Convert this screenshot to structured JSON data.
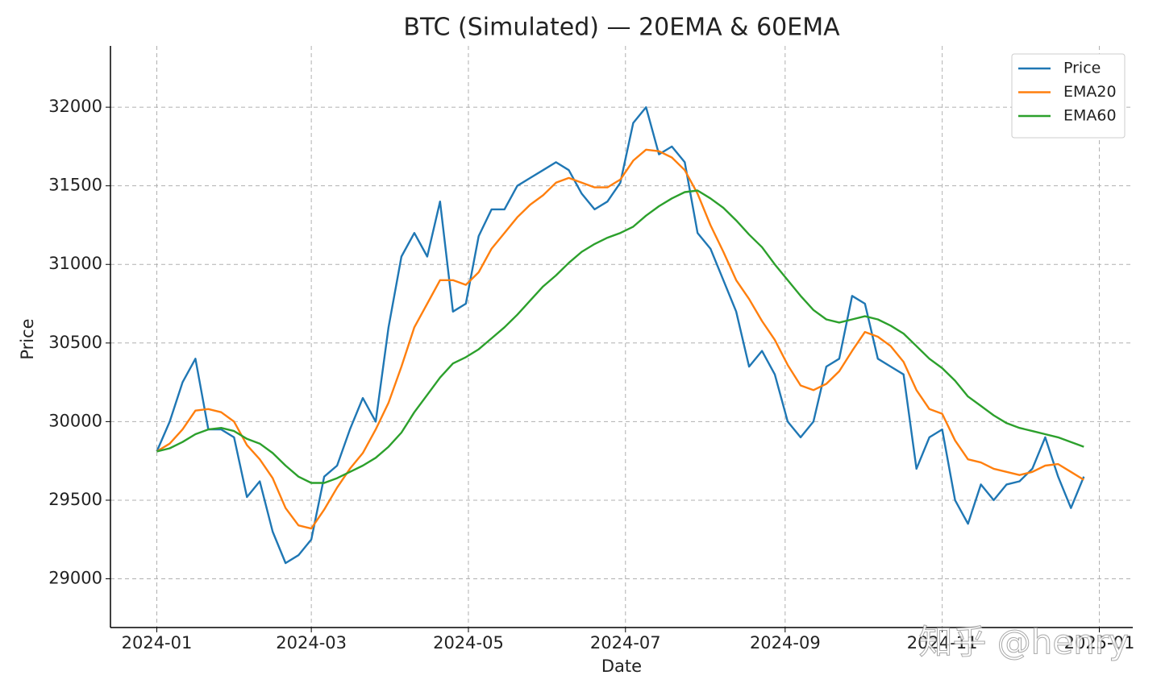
{
  "chart_data": {
    "type": "line",
    "title": "BTC (Simulated) — 20EMA & 60EMA",
    "x_label": "Date",
    "y_label": "Price",
    "xlim": [
      -18,
      379
    ],
    "ylim": [
      28690,
      32390
    ],
    "xticks": [
      {
        "value": 0,
        "label": "2024-01"
      },
      {
        "value": 60,
        "label": "2024-03"
      },
      {
        "value": 121,
        "label": "2024-05"
      },
      {
        "value": 182,
        "label": "2024-07"
      },
      {
        "value": 244,
        "label": "2024-09"
      },
      {
        "value": 305,
        "label": "2024-11"
      },
      {
        "value": 366,
        "label": "2025-01"
      }
    ],
    "yticks": [
      29000,
      29500,
      30000,
      30500,
      31000,
      31500,
      32000
    ],
    "grid": true,
    "legend": "upper right",
    "watermark": "知乎 @henry",
    "x": [
      0,
      5,
      10,
      15,
      20,
      25,
      30,
      35,
      40,
      45,
      50,
      55,
      60,
      65,
      70,
      75,
      80,
      85,
      90,
      95,
      100,
      105,
      110,
      115,
      120,
      125,
      130,
      135,
      140,
      145,
      150,
      155,
      160,
      165,
      170,
      175,
      180,
      185,
      190,
      195,
      200,
      205,
      210,
      215,
      220,
      225,
      230,
      235,
      240,
      245,
      250,
      255,
      260,
      265,
      270,
      275,
      280,
      285,
      290,
      295,
      300,
      305,
      310,
      315,
      320,
      325,
      330,
      335,
      340,
      345,
      350,
      355,
      360
    ],
    "series": [
      {
        "name": "Price",
        "color": "#1f77b4",
        "values": [
          29810,
          30000,
          30250,
          30400,
          29950,
          29950,
          29900,
          29520,
          29620,
          29300,
          29100,
          29150,
          29250,
          29650,
          29720,
          29950,
          30150,
          30000,
          30600,
          31050,
          31200,
          31050,
          31400,
          30700,
          30750,
          31180,
          31350,
          31350,
          31500,
          31550,
          31600,
          31650,
          31600,
          31450,
          31350,
          31400,
          31520,
          31900,
          32000,
          31700,
          31750,
          31650,
          31200,
          31100,
          30900,
          30700,
          30350,
          30450,
          30300,
          30000,
          29900,
          30000,
          30350,
          30400,
          30800,
          30750,
          30400,
          30350,
          30300,
          29700,
          29900,
          29950,
          29500,
          29350,
          29600,
          29500,
          29600,
          29620,
          29700,
          29900,
          29650,
          29450,
          29650
        ]
      },
      {
        "name": "EMA20",
        "color": "#ff7f0e",
        "values": [
          29810,
          29860,
          29950,
          30070,
          30080,
          30060,
          30000,
          29850,
          29760,
          29640,
          29450,
          29340,
          29320,
          29440,
          29580,
          29700,
          29800,
          29950,
          30120,
          30350,
          30600,
          30750,
          30900,
          30900,
          30870,
          30950,
          31100,
          31200,
          31300,
          31380,
          31440,
          31520,
          31550,
          31520,
          31490,
          31490,
          31540,
          31660,
          31730,
          31720,
          31680,
          31600,
          31450,
          31250,
          31080,
          30900,
          30780,
          30640,
          30520,
          30360,
          30230,
          30200,
          30240,
          30320,
          30450,
          30570,
          30540,
          30480,
          30380,
          30200,
          30080,
          30050,
          29880,
          29760,
          29740,
          29700,
          29680,
          29660,
          29680,
          29720,
          29730,
          29680,
          29630
        ]
      },
      {
        "name": "EMA60",
        "color": "#2ca02c",
        "values": [
          29810,
          29830,
          29870,
          29920,
          29950,
          29960,
          29940,
          29890,
          29860,
          29800,
          29720,
          29650,
          29610,
          29610,
          29640,
          29680,
          29720,
          29770,
          29840,
          29930,
          30060,
          30170,
          30280,
          30370,
          30410,
          30460,
          30530,
          30600,
          30680,
          30770,
          30860,
          30930,
          31010,
          31080,
          31130,
          31170,
          31200,
          31240,
          31310,
          31370,
          31420,
          31460,
          31470,
          31420,
          31360,
          31280,
          31190,
          31110,
          31000,
          30900,
          30800,
          30710,
          30650,
          30630,
          30650,
          30670,
          30650,
          30610,
          30560,
          30480,
          30400,
          30340,
          30260,
          30160,
          30100,
          30040,
          29990,
          29960,
          29940,
          29920,
          29900,
          29870,
          29840
        ]
      }
    ]
  }
}
